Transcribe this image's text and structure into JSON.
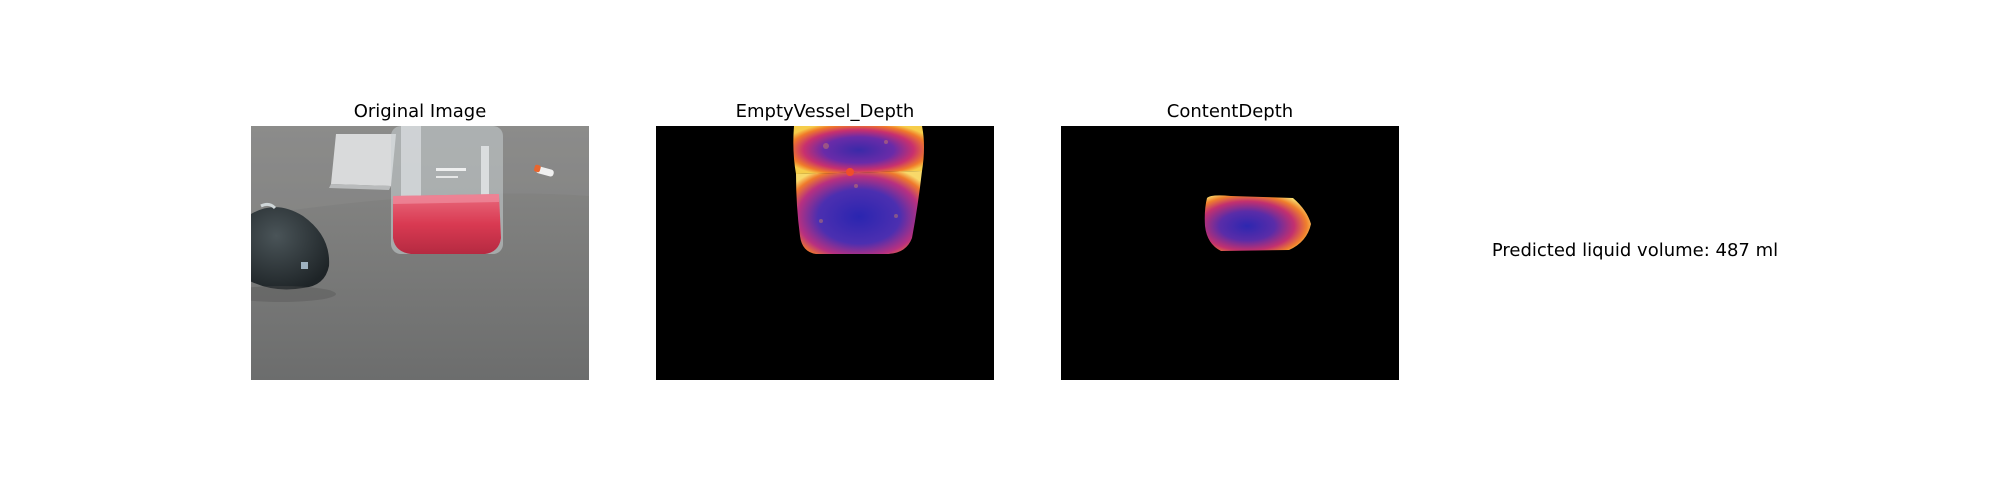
{
  "figure": {
    "panels": [
      {
        "title": "Original Image"
      },
      {
        "title": "EmptyVessel_Depth"
      },
      {
        "title": "ContentDepth"
      }
    ],
    "prediction_text": "Predicted liquid volume: 487 ml"
  },
  "colors": {
    "background": "#ffffff",
    "depth_background": "#000000",
    "liquid": "#e0374f",
    "desk": "#767676"
  }
}
